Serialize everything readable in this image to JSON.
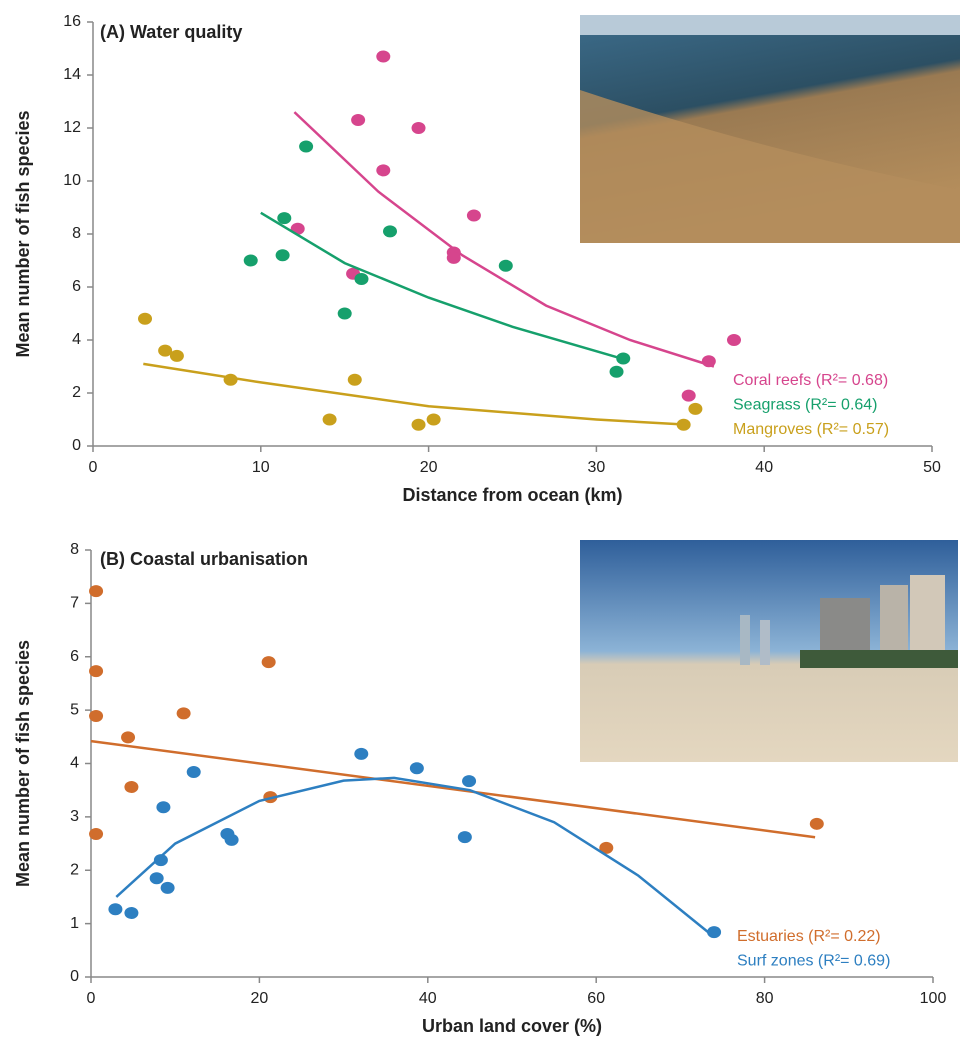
{
  "chart_data": [
    {
      "type": "scatter",
      "title": "(A) Water quality",
      "xlabel": "Distance from ocean (km)",
      "ylabel": "Mean number of fish species",
      "xlim": [
        0,
        50
      ],
      "ylim": [
        0,
        16
      ],
      "xticks": [
        0,
        10,
        20,
        30,
        40,
        50
      ],
      "yticks": [
        0,
        2,
        4,
        6,
        8,
        10,
        12,
        14,
        16
      ],
      "series": [
        {
          "name": "Coral reefs (R²= 0.68)",
          "color": "#d6458d",
          "x": [
            17.3,
            15.8,
            19.4,
            17.3,
            22.7,
            12.2,
            21.5,
            21.5,
            15.5,
            38.2,
            36.7,
            35.5
          ],
          "values": [
            14.7,
            12.3,
            12.0,
            10.4,
            8.7,
            8.2,
            7.3,
            7.1,
            6.5,
            4.0,
            3.2,
            1.9
          ],
          "fit_x": [
            12,
            17,
            22,
            27,
            32,
            37
          ],
          "fit_y": [
            12.6,
            9.6,
            7.2,
            5.3,
            4.0,
            3.0
          ]
        },
        {
          "name": "Seagrass (R²= 0.64)",
          "color": "#16a06c",
          "x": [
            12.7,
            11.4,
            17.7,
            9.4,
            11.3,
            24.6,
            16.0,
            15.0,
            31.6,
            31.2
          ],
          "values": [
            11.3,
            8.6,
            8.1,
            7.0,
            7.2,
            6.8,
            6.3,
            5.0,
            3.3,
            2.8
          ],
          "fit_x": [
            10,
            15,
            20,
            25,
            31.5
          ],
          "fit_y": [
            8.8,
            6.9,
            5.6,
            4.5,
            3.3
          ]
        },
        {
          "name": "Mangroves (R²= 0.57)",
          "color": "#c9a01c",
          "x": [
            3.1,
            4.3,
            5.0,
            8.2,
            15.6,
            14.1,
            19.4,
            20.3,
            35.2,
            35.9
          ],
          "values": [
            4.8,
            3.6,
            3.4,
            2.5,
            2.5,
            1.0,
            0.8,
            1.0,
            0.8,
            1.4
          ],
          "fit_x": [
            3,
            10,
            20,
            30,
            35.5
          ],
          "fit_y": [
            3.1,
            2.4,
            1.5,
            1.0,
            0.8
          ]
        }
      ]
    },
    {
      "type": "scatter",
      "title": "(B) Coastal urbanisation",
      "xlabel": "Urban land cover (%)",
      "ylabel": "Mean number of fish species",
      "xlim": [
        0,
        100
      ],
      "ylim": [
        0,
        8
      ],
      "xticks": [
        0,
        20,
        40,
        60,
        80,
        100
      ],
      "yticks": [
        0,
        1,
        2,
        3,
        4,
        5,
        6,
        7,
        8
      ],
      "series": [
        {
          "name": "Estuaries (R²= 0.22)",
          "color": "#d06d2c",
          "x": [
            0.6,
            0.6,
            0.6,
            0.6,
            4.4,
            4.8,
            11.0,
            21.1,
            21.3,
            61.2,
            86.2
          ],
          "values": [
            7.23,
            5.73,
            4.89,
            2.68,
            4.49,
            3.56,
            4.94,
            5.9,
            3.37,
            2.42,
            2.87
          ],
          "fit_x": [
            0,
            86
          ],
          "fit_y": [
            4.42,
            2.62
          ]
        },
        {
          "name": "Surf zones (R²= 0.69)",
          "color": "#2d7fc1",
          "x": [
            2.9,
            4.8,
            7.8,
            8.3,
            9.1,
            8.6,
            12.2,
            16.2,
            16.7,
            32.1,
            38.7,
            44.4,
            44.9,
            74.0
          ],
          "values": [
            1.27,
            1.2,
            1.85,
            2.19,
            1.67,
            3.18,
            3.84,
            2.68,
            2.57,
            4.18,
            3.91,
            2.62,
            3.67,
            0.84
          ],
          "fit_x": [
            3,
            10,
            20,
            30,
            36,
            45,
            55,
            65,
            74
          ],
          "fit_y": [
            1.5,
            2.5,
            3.3,
            3.68,
            3.73,
            3.5,
            2.9,
            1.9,
            0.75
          ]
        }
      ]
    }
  ]
}
